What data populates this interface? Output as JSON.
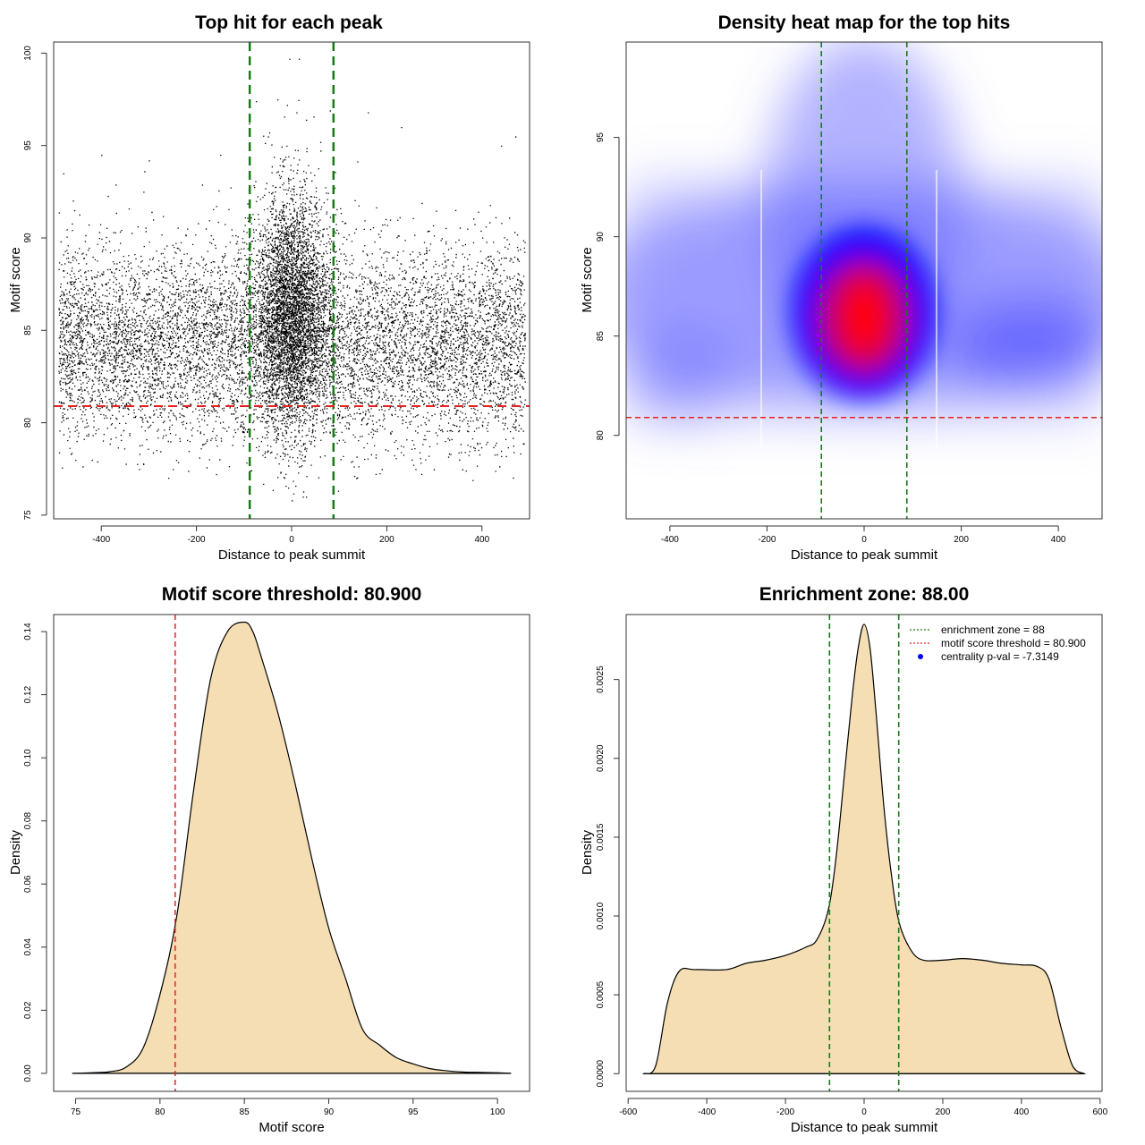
{
  "chart_data": [
    {
      "type": "scatter",
      "title": "Top hit for each peak",
      "xlabel": "Distance to peak summit",
      "ylabel": "Motif score",
      "xlim": [
        -500,
        500
      ],
      "ylim": [
        74.8,
        100.6
      ],
      "x_ticks": [
        -400,
        -200,
        0,
        200,
        400
      ],
      "x_tick_labels": [
        "-400",
        "-200",
        "0",
        "200",
        "400"
      ],
      "y_ticks": [
        75,
        80,
        85,
        90,
        95,
        100
      ],
      "y_tick_labels": [
        "75",
        "80",
        "85",
        "90",
        "95",
        "100"
      ],
      "points_sample": [
        [
          -30,
          97.5
        ],
        [
          -10,
          97.2
        ],
        [
          10,
          96.8
        ],
        [
          30,
          96.4
        ],
        [
          -5,
          99.7
        ],
        [
          15,
          99.7
        ],
        [
          -50,
          95.5
        ],
        [
          60,
          95.2
        ],
        [
          80,
          96.9
        ],
        [
          160,
          96.8
        ],
        [
          230,
          96.0
        ],
        [
          -150,
          94.5
        ],
        [
          -300,
          94.2
        ],
        [
          -400,
          94.5
        ],
        [
          -480,
          93.5
        ],
        [
          440,
          95.0
        ],
        [
          470,
          95.5
        ],
        [
          -60,
          76.7
        ],
        [
          0,
          75.8
        ],
        [
          30,
          76.0
        ],
        [
          -250,
          77.5
        ],
        [
          260,
          77.5
        ],
        [
          380,
          76.9
        ],
        [
          -420,
          78.0
        ],
        [
          450,
          78.2
        ],
        [
          -200,
          82.0
        ],
        [
          200,
          82.5
        ],
        [
          0,
          86.0
        ],
        [
          -20,
          88.0
        ],
        [
          20,
          84.0
        ],
        [
          -100,
          85.0
        ],
        [
          100,
          85.0
        ],
        [
          -300,
          84.0
        ],
        [
          300,
          84.0
        ],
        [
          -450,
          85.0
        ],
        [
          450,
          85.0
        ]
      ],
      "vlines": [
        -88,
        88
      ],
      "hline": 80.9,
      "vline_color": "#1a7a1a",
      "hline_color": "#e52222"
    },
    {
      "type": "heatmap",
      "title": "Density heat map for the top hits",
      "xlabel": "Distance to peak summit",
      "ylabel": "Motif score",
      "xlim": [
        -490,
        490
      ],
      "ylim": [
        75.8,
        99.8
      ],
      "x_ticks": [
        -400,
        -200,
        0,
        200,
        400
      ],
      "x_tick_labels": [
        "-400",
        "-200",
        "0",
        "200",
        "400"
      ],
      "y_ticks": [
        80,
        85,
        90,
        95
      ],
      "y_tick_labels": [
        "80",
        "85",
        "90",
        "95"
      ],
      "density_peak": [
        0,
        85.5
      ],
      "vlines": [
        -88,
        88
      ],
      "hline": 80.9,
      "color_scale": [
        "#ffffff",
        "#0000ff",
        "#ff0000"
      ],
      "vline_color": "#1a7a1a",
      "hline_color": "#e52222"
    },
    {
      "type": "area",
      "title": "Motif score threshold: 80.900",
      "xlabel": "Motif score",
      "ylabel": "Density",
      "xlim": [
        73.7,
        101.9
      ],
      "ylim": [
        -0.0057,
        0.1454
      ],
      "x_ticks": [
        75,
        80,
        85,
        90,
        95,
        100
      ],
      "x_tick_labels": [
        "75",
        "80",
        "85",
        "90",
        "95",
        "100"
      ],
      "y_ticks": [
        0,
        0.02,
        0.04,
        0.06,
        0.08,
        0.1,
        0.12,
        0.14
      ],
      "y_tick_labels": [
        "0.00",
        "0.02",
        "0.04",
        "0.06",
        "0.08",
        "0.10",
        "0.12",
        "0.14"
      ],
      "x": [
        74.8,
        76,
        77,
        78,
        79,
        80,
        81,
        82,
        83,
        84,
        85,
        85.5,
        86,
        87,
        88,
        89,
        90,
        91,
        92,
        93,
        94,
        95,
        96,
        97,
        98,
        99,
        100,
        100.8
      ],
      "y": [
        0,
        0.0002,
        0.0005,
        0.002,
        0.008,
        0.025,
        0.05,
        0.09,
        0.125,
        0.14,
        0.143,
        0.14,
        0.132,
        0.114,
        0.092,
        0.068,
        0.046,
        0.03,
        0.014,
        0.009,
        0.005,
        0.003,
        0.0015,
        0.0008,
        0.0004,
        0.0003,
        0.0002,
        0
      ],
      "vline": 80.9,
      "fill_color": "#f5deb3",
      "vline_color": "#e52222"
    },
    {
      "type": "area",
      "title": "Enrichment zone: 88.00",
      "xlabel": "Distance to peak summit",
      "ylabel": "Density",
      "xlim": [
        -605,
        605
      ],
      "ylim": [
        -0.000112,
        0.002912
      ],
      "x_ticks": [
        -600,
        -400,
        -200,
        0,
        200,
        400,
        600
      ],
      "x_tick_labels": [
        "-600",
        "-400",
        "-200",
        "0",
        "200",
        "400",
        "600"
      ],
      "y_ticks": [
        0,
        0.0005,
        0.001,
        0.0015,
        0.002,
        0.0025
      ],
      "y_tick_labels": [
        "0.0000",
        "0.0005",
        "0.0010",
        "0.0015",
        "0.0020",
        "0.0025"
      ],
      "x": [
        -560,
        -530,
        -500,
        -470,
        -430,
        -350,
        -300,
        -250,
        -200,
        -150,
        -120,
        -90,
        -70,
        -50,
        -30,
        -15,
        0,
        15,
        30,
        50,
        70,
        90,
        120,
        150,
        200,
        250,
        300,
        350,
        400,
        440,
        470,
        500,
        530,
        560
      ],
      "y": [
        0,
        5e-05,
        0.00045,
        0.00065,
        0.00066,
        0.00066,
        0.0007,
        0.00072,
        0.00075,
        0.0008,
        0.00085,
        0.00105,
        0.0014,
        0.0019,
        0.0024,
        0.0027,
        0.00285,
        0.0027,
        0.0023,
        0.0017,
        0.00125,
        0.00095,
        0.00078,
        0.00072,
        0.00072,
        0.00073,
        0.00072,
        0.0007,
        0.00069,
        0.00068,
        0.0006,
        0.0003,
        5e-05,
        0
      ],
      "vlines": [
        -88,
        88
      ],
      "fill_color": "#f5deb3",
      "vline_color": "#1a7a1a",
      "legend": {
        "placement": "top-right",
        "entries": [
          {
            "label": "enrichment zone = 88",
            "color": "#1a7a1a",
            "kind": "dotted-line"
          },
          {
            "label": "motif score threshold = 80.900",
            "color": "#e52222",
            "kind": "dotted-line"
          },
          {
            "label": "centrality p-val = -7.3149",
            "color": "#0000ff",
            "kind": "point"
          }
        ]
      }
    }
  ]
}
